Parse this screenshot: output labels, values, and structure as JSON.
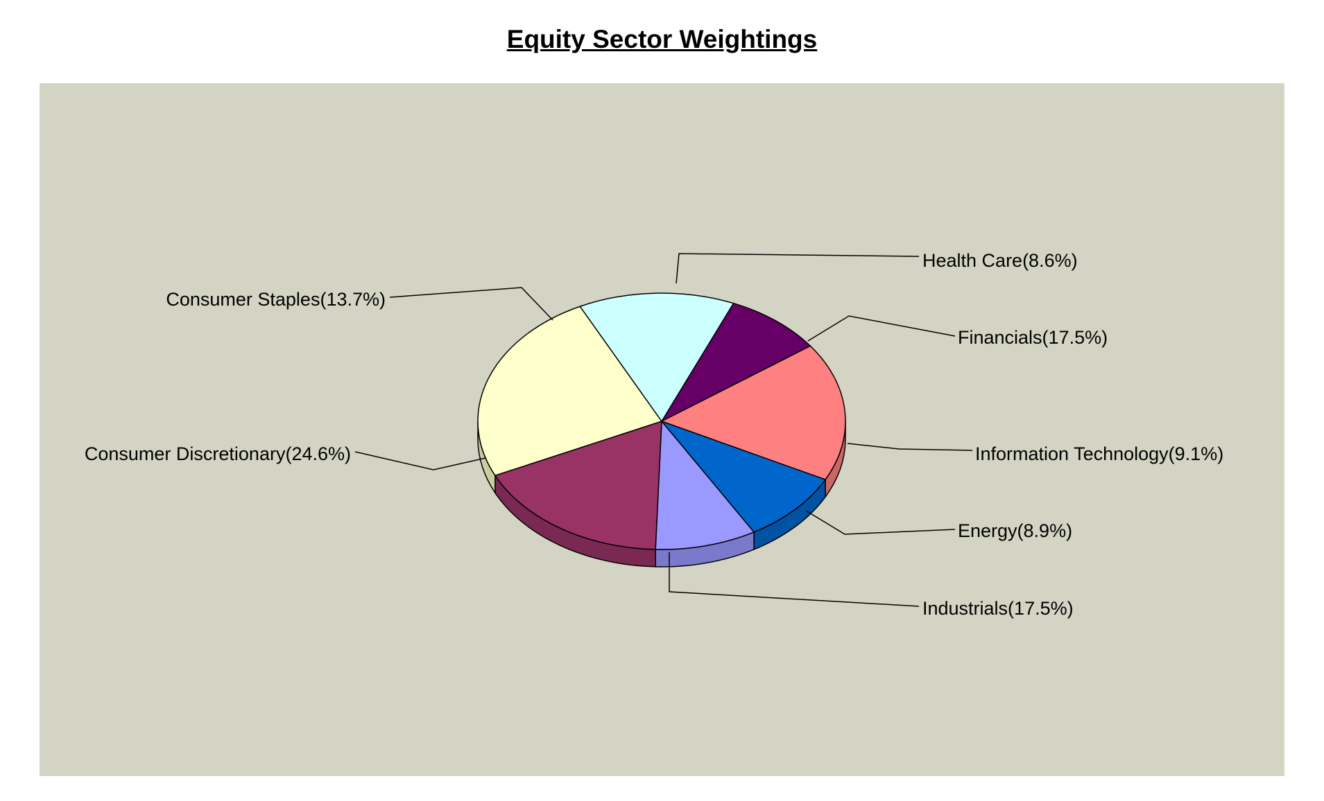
{
  "chart_data": {
    "type": "pie",
    "title": "Equity Sector Weightings",
    "style": "3d",
    "plot_background": "#d4d4c4",
    "slices": [
      {
        "label": "Health Care",
        "value": 8.6,
        "value_text": "8.6%",
        "color": "#660066"
      },
      {
        "label": "Financials",
        "value": 17.5,
        "value_text": "17.5%",
        "color": "#ff8080"
      },
      {
        "label": "Information Technology",
        "value": 9.1,
        "value_text": "9.1%",
        "color": "#0066cc"
      },
      {
        "label": "Energy",
        "value": 8.9,
        "value_text": "8.9%",
        "color": "#9999ff"
      },
      {
        "label": "Industrials",
        "value": 17.5,
        "value_text": "17.5%",
        "color": "#993366"
      },
      {
        "label": "Consumer Discretionary",
        "value": 24.6,
        "value_text": "24.6%",
        "color": "#ffffcc"
      },
      {
        "label": "Consumer Staples",
        "value": 13.7,
        "value_text": "13.7%",
        "color": "#ccffff"
      }
    ]
  }
}
